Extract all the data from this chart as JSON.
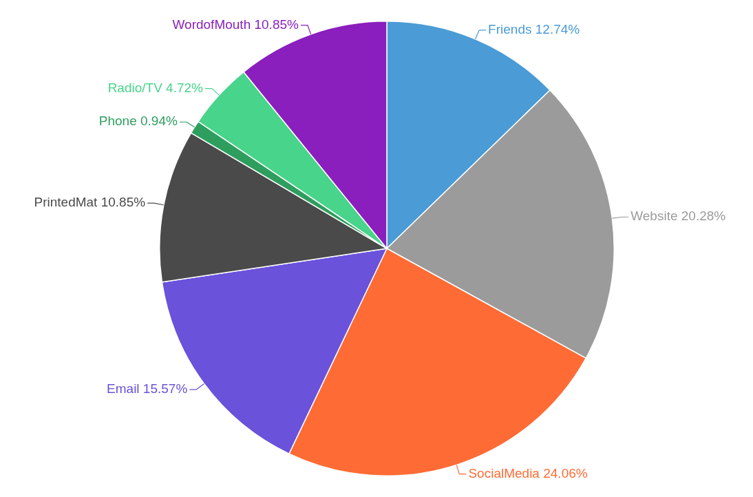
{
  "chart_data": {
    "type": "pie",
    "categories": [
      "Friends",
      "Website",
      "SocialMedia",
      "Email",
      "PrintedMat",
      "Phone",
      "Radio/TV",
      "WordofMouth"
    ],
    "values": [
      12.74,
      20.28,
      24.06,
      15.57,
      10.85,
      0.94,
      4.72,
      10.85
    ],
    "value_labels": [
      "12.74%",
      "20.28%",
      "24.06%",
      "15.57%",
      "10.85%",
      "0.94%",
      "4.72%",
      "10.85%"
    ],
    "colors": [
      "#4a9bd6",
      "#9b9b9b",
      "#ff6b35",
      "#6a52db",
      "#4a4a4a",
      "#2e9e5e",
      "#48d48a",
      "#8a1fbd"
    ],
    "legend": false
  }
}
